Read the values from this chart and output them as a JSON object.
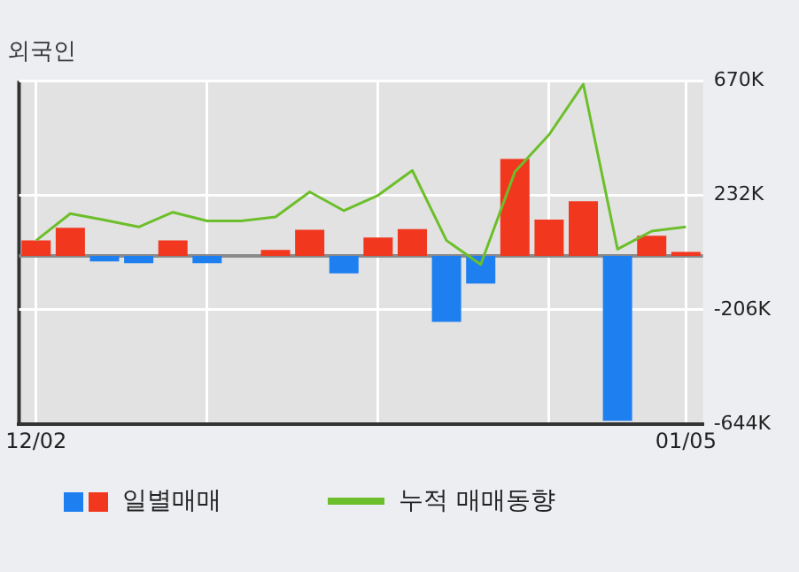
{
  "chart_data": {
    "type": "bar",
    "title": "외국인",
    "categories": [
      "12/02",
      null,
      null,
      null,
      null,
      null,
      null,
      null,
      null,
      null,
      null,
      null,
      null,
      null,
      null,
      null,
      null,
      null,
      null,
      "01/05"
    ],
    "series": [
      {
        "name": "일별매매",
        "colors": [
          "#f2371f",
          "#f2371f",
          "#1e7ff0",
          "#1e7ff0",
          "#f2371f",
          "#1e7ff0",
          "#f2371f",
          "#f2371f",
          "#f2371f",
          "#1e7ff0",
          "#f2371f",
          "#f2371f",
          "#1e7ff0",
          "#1e7ff0",
          "#f2371f",
          "#f2371f",
          "#f2371f",
          "#1e7ff0",
          "#f2371f",
          "#f2371f"
        ],
        "values": [
          59,
          108,
          -21,
          -28,
          59,
          -28,
          0,
          23,
          100,
          -67,
          70,
          103,
          -252,
          -106,
          371,
          139,
          209,
          -631,
          77,
          15
        ]
      },
      {
        "name": "누적 매매동향",
        "type": "line",
        "color": "#6cbf2a",
        "values": [
          59,
          162,
          137,
          111,
          167,
          134,
          134,
          149,
          245,
          173,
          232,
          327,
          59,
          -33,
          322,
          464,
          657,
          26,
          95,
          111
        ]
      }
    ],
    "ylim": [
      -644,
      670
    ],
    "yticks": [
      {
        "value": -644,
        "label": "-644K"
      },
      {
        "value": -206,
        "label": "-206K"
      },
      {
        "value": 232,
        "label": "232K"
      },
      {
        "value": 670,
        "label": "670K"
      }
    ],
    "grid": true,
    "legend": "bottom",
    "marker": "none",
    "line_style": "solid"
  }
}
